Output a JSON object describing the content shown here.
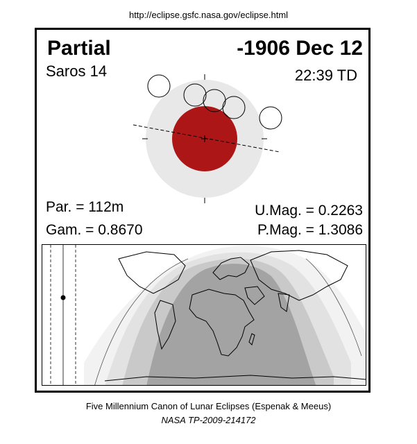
{
  "source_url": "http://eclipse.gsfc.nasa.gov/eclipse.html",
  "eclipse_type": "Partial",
  "date": "-1906 Dec 12",
  "saros": "Saros  14",
  "time": "22:39 TD",
  "params": {
    "par": "Par. = 112m",
    "gam": "Gam. = 0.8670",
    "umag": "U.Mag. = 0.2263",
    "pmag": "P.Mag. = 1.3086"
  },
  "footer": {
    "canon": "Five Millennium Canon of Lunar Eclipses (Espenak & Meeus)",
    "publication": "NASA TP-2009-214172"
  },
  "colors": {
    "umbra": "#ac1616",
    "penumbra": "#e8e8e8",
    "map_dark": "#a0a0a0",
    "map_mid": "#c0c0c0",
    "map_light": "#dcdcdc",
    "map_lightest": "#ececec"
  }
}
